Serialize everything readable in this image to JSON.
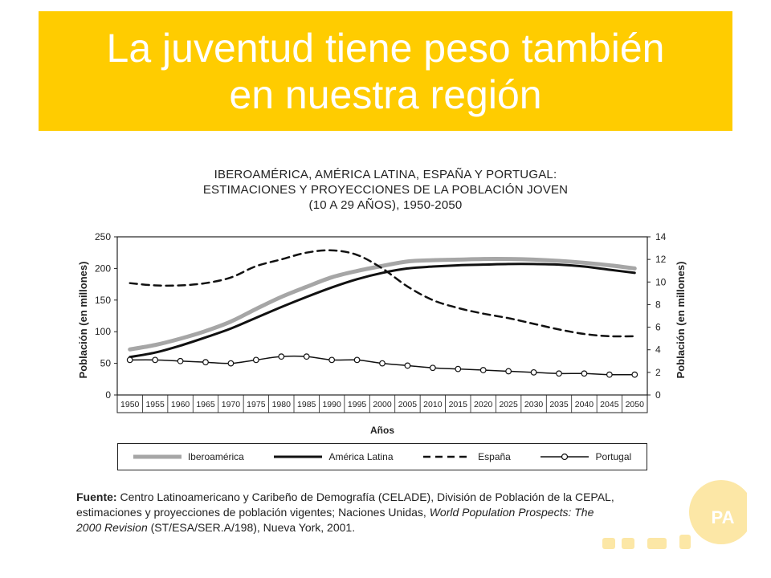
{
  "colors": {
    "banner": "#FFCC00",
    "banner_text": "#ffffff",
    "iberoamerica": "#a6a6a6",
    "america_latina": "#111111",
    "espana": "#111111",
    "portugal": "#111111",
    "deco": "#FCE7A6"
  },
  "banner": {
    "title_line1": "La juventud tiene peso también",
    "title_line2": "en nuestra región"
  },
  "chart_data": {
    "type": "line",
    "title_lines": [
      "IBEROAMÉRICA, AMÉRICA LATINA, ESPAÑA Y PORTUGAL:",
      "ESTIMACIONES Y PROYECCIONES DE LA POBLACIÓN JOVEN",
      "(10 A 29 AÑOS), 1950-2050"
    ],
    "xlabel": "Años",
    "ylabel_left": "Población (en millones)",
    "ylabel_right": "Población (en millones)",
    "x": [
      "1950",
      "1955",
      "1960",
      "1965",
      "1970",
      "1975",
      "1980",
      "1985",
      "1990",
      "1995",
      "2000",
      "2005",
      "2010",
      "2015",
      "2020",
      "2025",
      "2030",
      "2035",
      "2040",
      "2045",
      "2050"
    ],
    "ylim_left": [
      0,
      250
    ],
    "yticks_left": [
      0,
      50,
      100,
      150,
      200,
      250
    ],
    "ylim_right": [
      0,
      14
    ],
    "yticks_right": [
      0,
      2,
      4,
      6,
      8,
      10,
      12,
      14
    ],
    "grid": false,
    "legend_position": "bottom",
    "series": [
      {
        "name": "Iberoamérica",
        "axis": "left",
        "style": "thick-gray",
        "values": [
          72,
          79,
          89,
          101,
          116,
          136,
          155,
          171,
          186,
          196,
          204,
          211,
          213,
          214,
          215,
          215,
          214,
          212,
          209,
          205,
          200
        ]
      },
      {
        "name": "América Latina",
        "axis": "left",
        "style": "solid-black",
        "values": [
          60,
          67,
          78,
          91,
          105,
          122,
          139,
          155,
          170,
          183,
          193,
          200,
          203,
          205,
          206,
          207,
          207,
          206,
          203,
          198,
          193
        ]
      },
      {
        "name": "España",
        "axis": "right",
        "style": "dashed",
        "values": [
          9.9,
          9.7,
          9.7,
          9.9,
          10.4,
          11.4,
          12.0,
          12.6,
          12.8,
          12.4,
          11.2,
          9.6,
          8.4,
          7.7,
          7.2,
          6.8,
          6.3,
          5.8,
          5.4,
          5.2,
          5.2
        ]
      },
      {
        "name": "Portugal",
        "axis": "right",
        "style": "solid-circles",
        "values": [
          3.1,
          3.1,
          3.0,
          2.9,
          2.8,
          3.1,
          3.4,
          3.4,
          3.1,
          3.1,
          2.8,
          2.6,
          2.4,
          2.3,
          2.2,
          2.1,
          2.0,
          1.9,
          1.9,
          1.8,
          1.8
        ]
      }
    ]
  },
  "source": {
    "label": "Fuente:",
    "text_line1": "Centro Latinoamericano y Caribeño de Demografía (CELADE), División de Población de la CEPAL,",
    "text_line2": "estimaciones y proyecciones de población vigentes; Naciones Unidas,",
    "italic_part1": "World Population Prospects: The",
    "italic_part2": "2000 Revision",
    "text_line3": "(ST/ESA/SER.A/198), Nueva York, 2001."
  },
  "deco_logo": {
    "text": "PA",
    "dots": "• • •"
  }
}
